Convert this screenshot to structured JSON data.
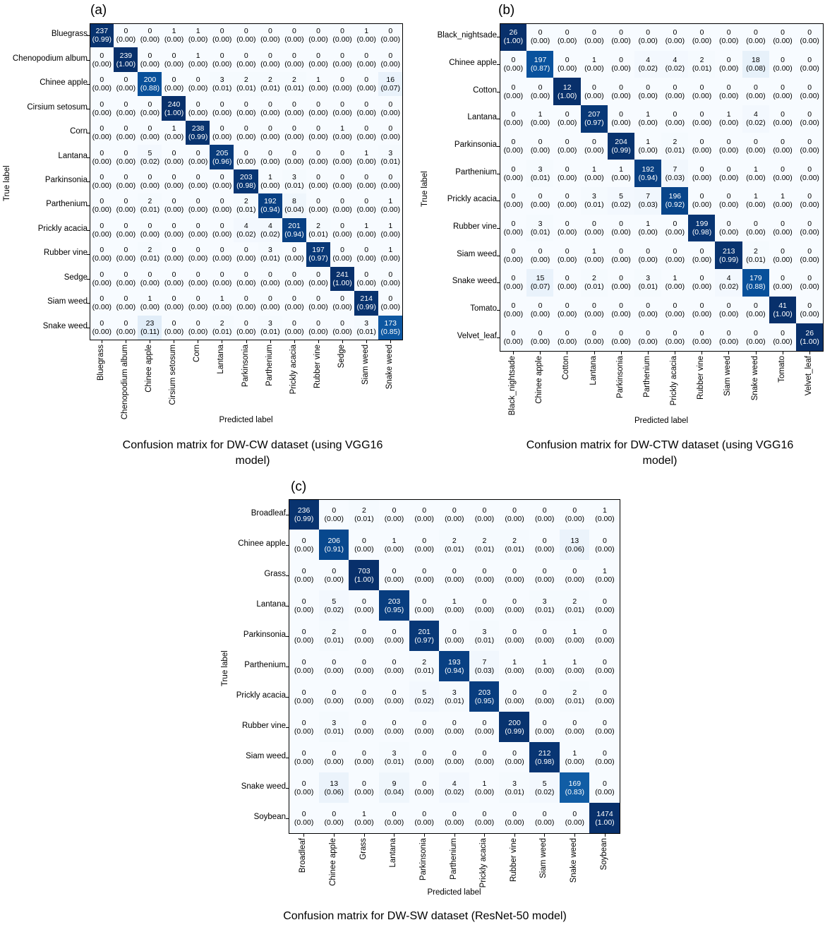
{
  "chart_data": [
    {
      "type": "heatmap",
      "panel": "(a)",
      "panel_letter": "a",
      "xlabel": "Predicted label",
      "ylabel": "True label",
      "caption_lines": [
        "Confusion matrix for DW-CW dataset (using VGG16",
        "model)"
      ],
      "labels": [
        "Bluegrass",
        "Chenopodium album",
        "Chinee apple",
        "Cirsium setosum",
        "Corn",
        "Lantana",
        "Parkinsonia",
        "Parthenium",
        "Prickly acacia",
        "Rubber vine",
        "Sedge",
        "Siam weed",
        "Snake weed"
      ],
      "counts": [
        [
          237,
          0,
          0,
          1,
          1,
          0,
          0,
          0,
          0,
          0,
          0,
          1,
          0
        ],
        [
          0,
          239,
          0,
          0,
          1,
          0,
          0,
          0,
          0,
          0,
          0,
          0,
          0
        ],
        [
          0,
          0,
          200,
          0,
          0,
          3,
          2,
          2,
          2,
          1,
          0,
          0,
          16
        ],
        [
          0,
          0,
          0,
          240,
          0,
          0,
          0,
          0,
          0,
          0,
          0,
          0,
          0
        ],
        [
          0,
          0,
          0,
          1,
          238,
          0,
          0,
          0,
          0,
          0,
          1,
          0,
          0
        ],
        [
          0,
          0,
          5,
          0,
          0,
          205,
          0,
          0,
          0,
          0,
          0,
          1,
          3
        ],
        [
          0,
          0,
          0,
          0,
          0,
          0,
          203,
          1,
          3,
          0,
          0,
          0,
          0
        ],
        [
          0,
          0,
          2,
          0,
          0,
          0,
          2,
          192,
          8,
          0,
          0,
          0,
          1
        ],
        [
          0,
          0,
          0,
          0,
          0,
          0,
          4,
          4,
          201,
          2,
          0,
          1,
          1
        ],
        [
          0,
          0,
          2,
          0,
          0,
          0,
          0,
          3,
          0,
          197,
          0,
          0,
          1
        ],
        [
          0,
          0,
          0,
          0,
          0,
          0,
          0,
          0,
          0,
          0,
          241,
          0,
          0
        ],
        [
          0,
          0,
          1,
          0,
          0,
          1,
          0,
          0,
          0,
          0,
          0,
          214,
          0
        ],
        [
          0,
          0,
          23,
          0,
          0,
          2,
          0,
          3,
          0,
          0,
          0,
          3,
          173
        ]
      ],
      "ratios": [
        [
          "0.99",
          "0.00",
          "0.00",
          "0.00",
          "0.00",
          "0.00",
          "0.00",
          "0.00",
          "0.00",
          "0.00",
          "0.00",
          "0.00",
          "0.00"
        ],
        [
          "0.00",
          "1.00",
          "0.00",
          "0.00",
          "0.00",
          "0.00",
          "0.00",
          "0.00",
          "0.00",
          "0.00",
          "0.00",
          "0.00",
          "0.00"
        ],
        [
          "0.00",
          "0.00",
          "0.88",
          "0.00",
          "0.00",
          "0.01",
          "0.01",
          "0.01",
          "0.01",
          "0.00",
          "0.00",
          "0.00",
          "0.07"
        ],
        [
          "0.00",
          "0.00",
          "0.00",
          "1.00",
          "0.00",
          "0.00",
          "0.00",
          "0.00",
          "0.00",
          "0.00",
          "0.00",
          "0.00",
          "0.00"
        ],
        [
          "0.00",
          "0.00",
          "0.00",
          "0.00",
          "0.99",
          "0.00",
          "0.00",
          "0.00",
          "0.00",
          "0.00",
          "0.00",
          "0.00",
          "0.00"
        ],
        [
          "0.00",
          "0.00",
          "0.02",
          "0.00",
          "0.00",
          "0.96",
          "0.00",
          "0.00",
          "0.00",
          "0.00",
          "0.00",
          "0.00",
          "0.01"
        ],
        [
          "0.00",
          "0.00",
          "0.00",
          "0.00",
          "0.00",
          "0.00",
          "0.98",
          "0.00",
          "0.01",
          "0.00",
          "0.00",
          "0.00",
          "0.00"
        ],
        [
          "0.00",
          "0.00",
          "0.01",
          "0.00",
          "0.00",
          "0.00",
          "0.01",
          "0.94",
          "0.04",
          "0.00",
          "0.00",
          "0.00",
          "0.00"
        ],
        [
          "0.00",
          "0.00",
          "0.00",
          "0.00",
          "0.00",
          "0.00",
          "0.02",
          "0.02",
          "0.94",
          "0.01",
          "0.00",
          "0.00",
          "0.00"
        ],
        [
          "0.00",
          "0.00",
          "0.01",
          "0.00",
          "0.00",
          "0.00",
          "0.00",
          "0.01",
          "0.00",
          "0.97",
          "0.00",
          "0.00",
          "0.00"
        ],
        [
          "0.00",
          "0.00",
          "0.00",
          "0.00",
          "0.00",
          "0.00",
          "0.00",
          "0.00",
          "0.00",
          "0.00",
          "1.00",
          "0.00",
          "0.00"
        ],
        [
          "0.00",
          "0.00",
          "0.00",
          "0.00",
          "0.00",
          "0.00",
          "0.00",
          "0.00",
          "0.00",
          "0.00",
          "0.00",
          "0.99",
          "0.00"
        ],
        [
          "0.00",
          "0.00",
          "0.11",
          "0.00",
          "0.00",
          "0.01",
          "0.00",
          "0.01",
          "0.00",
          "0.00",
          "0.00",
          "0.01",
          "0.85"
        ]
      ]
    },
    {
      "type": "heatmap",
      "panel": "(b)",
      "panel_letter": "b",
      "xlabel": "Predicted label",
      "ylabel": "True label",
      "caption_lines": [
        "Confusion matrix for DW-CTW dataset (using VGG16",
        "model)"
      ],
      "labels": [
        "Black_nightsade",
        "Chinee apple",
        "Cotton",
        "Lantana",
        "Parkinsonia",
        "Parthenium",
        "Prickly acacia",
        "Rubber vine",
        "Siam weed",
        "Snake weed",
        "Tomato",
        "Velvet_leaf"
      ],
      "counts": [
        [
          26,
          0,
          0,
          0,
          0,
          0,
          0,
          0,
          0,
          0,
          0,
          0
        ],
        [
          0,
          197,
          0,
          1,
          0,
          4,
          4,
          2,
          0,
          18,
          0,
          0
        ],
        [
          0,
          0,
          12,
          0,
          0,
          0,
          0,
          0,
          0,
          0,
          0,
          0
        ],
        [
          0,
          1,
          0,
          207,
          0,
          1,
          0,
          0,
          1,
          4,
          0,
          0
        ],
        [
          0,
          0,
          0,
          0,
          204,
          1,
          2,
          0,
          0,
          0,
          0,
          0
        ],
        [
          0,
          3,
          0,
          1,
          1,
          192,
          7,
          0,
          0,
          1,
          0,
          0
        ],
        [
          0,
          0,
          0,
          3,
          5,
          7,
          196,
          0,
          0,
          1,
          1,
          0
        ],
        [
          0,
          3,
          0,
          0,
          0,
          1,
          0,
          199,
          0,
          0,
          0,
          0
        ],
        [
          0,
          0,
          0,
          1,
          0,
          0,
          0,
          0,
          213,
          2,
          0,
          0
        ],
        [
          0,
          15,
          0,
          2,
          0,
          3,
          1,
          0,
          4,
          179,
          0,
          0
        ],
        [
          0,
          0,
          0,
          0,
          0,
          0,
          0,
          0,
          0,
          0,
          41,
          0
        ],
        [
          0,
          0,
          0,
          0,
          0,
          0,
          0,
          0,
          0,
          0,
          0,
          26
        ]
      ],
      "ratios": [
        [
          "1.00",
          "0.00",
          "0.00",
          "0.00",
          "0.00",
          "0.00",
          "0.00",
          "0.00",
          "0.00",
          "0.00",
          "0.00",
          "0.00"
        ],
        [
          "0.00",
          "0.87",
          "0.00",
          "0.00",
          "0.00",
          "0.02",
          "0.02",
          "0.01",
          "0.00",
          "0.08",
          "0.00",
          "0.00"
        ],
        [
          "0.00",
          "0.00",
          "1.00",
          "0.00",
          "0.00",
          "0.00",
          "0.00",
          "0.00",
          "0.00",
          "0.00",
          "0.00",
          "0.00"
        ],
        [
          "0.00",
          "0.00",
          "0.00",
          "0.97",
          "0.00",
          "0.00",
          "0.00",
          "0.00",
          "0.00",
          "0.02",
          "0.00",
          "0.00"
        ],
        [
          "0.00",
          "0.00",
          "0.00",
          "0.00",
          "0.99",
          "0.00",
          "0.01",
          "0.00",
          "0.00",
          "0.00",
          "0.00",
          "0.00"
        ],
        [
          "0.00",
          "0.01",
          "0.00",
          "0.00",
          "0.00",
          "0.94",
          "0.03",
          "0.00",
          "0.00",
          "0.00",
          "0.00",
          "0.00"
        ],
        [
          "0.00",
          "0.00",
          "0.00",
          "0.01",
          "0.02",
          "0.03",
          "0.92",
          "0.00",
          "0.00",
          "0.00",
          "0.00",
          "0.00"
        ],
        [
          "0.00",
          "0.01",
          "0.00",
          "0.00",
          "0.00",
          "0.00",
          "0.00",
          "0.98",
          "0.00",
          "0.00",
          "0.00",
          "0.00"
        ],
        [
          "0.00",
          "0.00",
          "0.00",
          "0.00",
          "0.00",
          "0.00",
          "0.00",
          "0.00",
          "0.99",
          "0.01",
          "0.00",
          "0.00"
        ],
        [
          "0.00",
          "0.07",
          "0.00",
          "0.01",
          "0.00",
          "0.01",
          "0.00",
          "0.00",
          "0.02",
          "0.88",
          "0.00",
          "0.00"
        ],
        [
          "0.00",
          "0.00",
          "0.00",
          "0.00",
          "0.00",
          "0.00",
          "0.00",
          "0.00",
          "0.00",
          "0.00",
          "1.00",
          "0.00"
        ],
        [
          "0.00",
          "0.00",
          "0.00",
          "0.00",
          "0.00",
          "0.00",
          "0.00",
          "0.00",
          "0.00",
          "0.00",
          "0.00",
          "1.00"
        ]
      ]
    },
    {
      "type": "heatmap",
      "panel": "(c)",
      "panel_letter": "c",
      "xlabel": "Predicted label",
      "ylabel": "True label",
      "caption_lines": [
        "Confusion matrix for DW-SW dataset (ResNet-50 model)"
      ],
      "labels": [
        "Broadleaf",
        "Chinee apple",
        "Grass",
        "Lantana",
        "Parkinsonia",
        "Parthenium",
        "Prickly acacia",
        "Rubber vine",
        "Siam weed",
        "Snake weed",
        "Soybean"
      ],
      "counts": [
        [
          236,
          0,
          2,
          0,
          0,
          0,
          0,
          0,
          0,
          0,
          1
        ],
        [
          0,
          206,
          0,
          1,
          0,
          2,
          2,
          2,
          0,
          13,
          0
        ],
        [
          0,
          0,
          703,
          0,
          0,
          0,
          0,
          0,
          0,
          0,
          1
        ],
        [
          0,
          5,
          0,
          203,
          0,
          1,
          0,
          0,
          3,
          2,
          0
        ],
        [
          0,
          2,
          0,
          0,
          201,
          0,
          3,
          0,
          0,
          1,
          0
        ],
        [
          0,
          0,
          0,
          0,
          2,
          193,
          7,
          1,
          1,
          1,
          0
        ],
        [
          0,
          0,
          0,
          0,
          5,
          3,
          203,
          0,
          0,
          2,
          0
        ],
        [
          0,
          3,
          0,
          0,
          0,
          0,
          0,
          200,
          0,
          0,
          0
        ],
        [
          0,
          0,
          0,
          3,
          0,
          0,
          0,
          0,
          212,
          1,
          0
        ],
        [
          0,
          13,
          0,
          9,
          0,
          4,
          1,
          3,
          5,
          169,
          0
        ],
        [
          0,
          0,
          1,
          0,
          0,
          0,
          0,
          0,
          0,
          0,
          1474
        ]
      ],
      "ratios": [
        [
          "0.99",
          "0.00",
          "0.01",
          "0.00",
          "0.00",
          "0.00",
          "0.00",
          "0.00",
          "0.00",
          "0.00",
          "0.00"
        ],
        [
          "0.00",
          "0.91",
          "0.00",
          "0.00",
          "0.00",
          "0.01",
          "0.01",
          "0.01",
          "0.00",
          "0.06",
          "0.00"
        ],
        [
          "0.00",
          "0.00",
          "1.00",
          "0.00",
          "0.00",
          "0.00",
          "0.00",
          "0.00",
          "0.00",
          "0.00",
          "0.00"
        ],
        [
          "0.00",
          "0.02",
          "0.00",
          "0.95",
          "0.00",
          "0.00",
          "0.00",
          "0.00",
          "0.01",
          "0.01",
          "0.00"
        ],
        [
          "0.00",
          "0.01",
          "0.00",
          "0.00",
          "0.97",
          "0.00",
          "0.01",
          "0.00",
          "0.00",
          "0.00",
          "0.00"
        ],
        [
          "0.00",
          "0.00",
          "0.00",
          "0.00",
          "0.01",
          "0.94",
          "0.03",
          "0.00",
          "0.00",
          "0.00",
          "0.00"
        ],
        [
          "0.00",
          "0.00",
          "0.00",
          "0.00",
          "0.02",
          "0.01",
          "0.95",
          "0.00",
          "0.00",
          "0.01",
          "0.00"
        ],
        [
          "0.00",
          "0.01",
          "0.00",
          "0.00",
          "0.00",
          "0.00",
          "0.00",
          "0.99",
          "0.00",
          "0.00",
          "0.00"
        ],
        [
          "0.00",
          "0.00",
          "0.00",
          "0.01",
          "0.00",
          "0.00",
          "0.00",
          "0.00",
          "0.98",
          "0.00",
          "0.00"
        ],
        [
          "0.00",
          "0.06",
          "0.00",
          "0.04",
          "0.00",
          "0.02",
          "0.00",
          "0.01",
          "0.02",
          "0.83",
          "0.00"
        ],
        [
          "0.00",
          "0.00",
          "0.00",
          "0.00",
          "0.00",
          "0.00",
          "0.00",
          "0.00",
          "0.00",
          "0.00",
          "1.00"
        ]
      ]
    }
  ]
}
